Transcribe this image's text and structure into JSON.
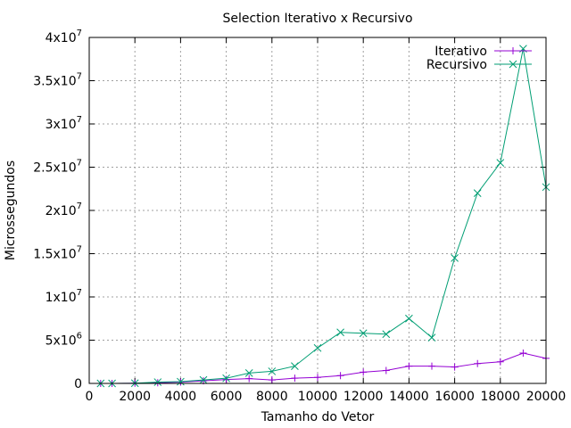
{
  "chart_data": {
    "type": "line",
    "title": "Selection Iterativo x Recursivo",
    "xlabel": "Tamanho do Vetor",
    "ylabel": "Microssegundos",
    "xlim": [
      0,
      20000
    ],
    "ylim": [
      0,
      40000000
    ],
    "grid": true,
    "legend_position": "top-right",
    "x_ticks": [
      "0",
      "2000",
      "4000",
      "6000",
      "8000",
      "10000",
      "12000",
      "14000",
      "16000",
      "18000",
      "20000"
    ],
    "y_ticks": [
      {
        "value": 0,
        "base": "0",
        "exp": ""
      },
      {
        "value": 5000000,
        "base": "5x10",
        "exp": "6"
      },
      {
        "value": 10000000,
        "base": "1x10",
        "exp": "7"
      },
      {
        "value": 15000000,
        "base": "1.5x10",
        "exp": "7"
      },
      {
        "value": 20000000,
        "base": "2x10",
        "exp": "7"
      },
      {
        "value": 25000000,
        "base": "2.5x10",
        "exp": "7"
      },
      {
        "value": 30000000,
        "base": "3x10",
        "exp": "7"
      },
      {
        "value": 35000000,
        "base": "3.5x10",
        "exp": "7"
      },
      {
        "value": 40000000,
        "base": "4x10",
        "exp": "7"
      }
    ],
    "x": [
      500,
      1000,
      2000,
      3000,
      4000,
      5000,
      6000,
      7000,
      8000,
      9000,
      10000,
      11000,
      12000,
      13000,
      14000,
      15000,
      16000,
      17000,
      18000,
      19000,
      20000
    ],
    "series": [
      {
        "name": "Iterativo",
        "color": "#9400d3",
        "marker": "plus",
        "values": [
          0,
          0,
          20000,
          80000,
          150000,
          300000,
          450000,
          550000,
          400000,
          600000,
          700000,
          900000,
          1300000,
          1500000,
          2000000,
          2000000,
          1900000,
          2300000,
          2500000,
          3500000,
          2900000
        ]
      },
      {
        "name": "Recursivo",
        "color": "#009e73",
        "marker": "cross",
        "values": [
          0,
          0,
          30000,
          150000,
          200000,
          400000,
          600000,
          1200000,
          1400000,
          2000000,
          4100000,
          5900000,
          5800000,
          5700000,
          7500000,
          5300000,
          14500000,
          22000000,
          25500000,
          38700000,
          22700000
        ]
      }
    ]
  }
}
